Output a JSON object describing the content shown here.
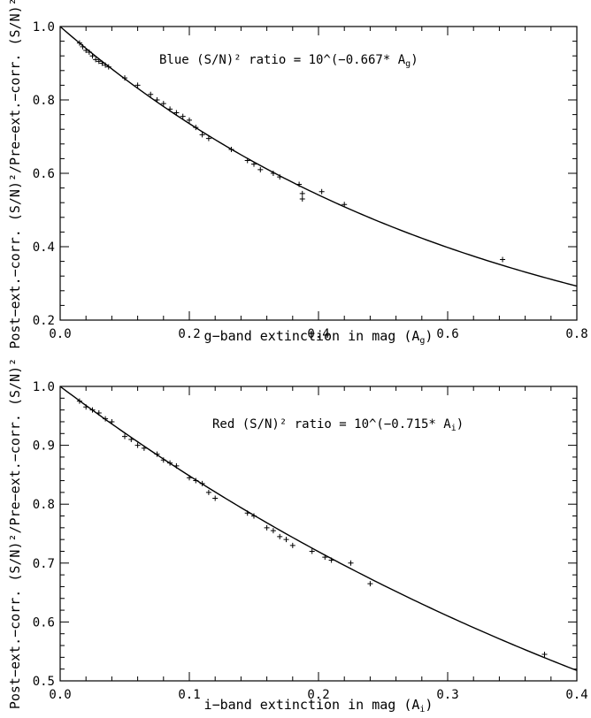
{
  "chart_data": [
    {
      "type": "scatter",
      "xlabel": "g−band extinction in mag (A",
      "xlabel_sub": "g",
      "xlabel_close": ")",
      "ylabel": "Post−ext.−corr. (S/N)²/Pre−ext.−corr. (S/N)²",
      "annotation": "Blue (S/N)² ratio = 10^(−0.667* A",
      "annotation_sub": "g",
      "annotation_close": ")",
      "xlim": [
        0.0,
        0.8
      ],
      "ylim": [
        0.2,
        1.0
      ],
      "xticks": [
        "0.0",
        "0.2",
        "0.4",
        "0.6",
        "0.8"
      ],
      "yticks": [
        "0.2",
        "0.4",
        "0.6",
        "0.8",
        "1.0"
      ],
      "fit_coefficient": -0.667,
      "series": [
        {
          "x": [
            0.03,
            0.035,
            0.04,
            0.045,
            0.05,
            0.055,
            0.06,
            0.065,
            0.07,
            0.075,
            0.1,
            0.12,
            0.14,
            0.15,
            0.16,
            0.17,
            0.18,
            0.19,
            0.2,
            0.21,
            0.22,
            0.23,
            0.265,
            0.29,
            0.3,
            0.31,
            0.33,
            0.34,
            0.37,
            0.375,
            0.375,
            0.405,
            0.44,
            0.685
          ],
          "y": [
            0.955,
            0.945,
            0.935,
            0.93,
            0.92,
            0.91,
            0.905,
            0.9,
            0.895,
            0.89,
            0.86,
            0.84,
            0.815,
            0.8,
            0.79,
            0.775,
            0.765,
            0.755,
            0.745,
            0.725,
            0.705,
            0.695,
            0.665,
            0.635,
            0.625,
            0.61,
            0.6,
            0.59,
            0.57,
            0.545,
            0.53,
            0.55,
            0.515,
            0.365
          ]
        }
      ]
    },
    {
      "type": "scatter",
      "xlabel": "i−band extinction in mag (A",
      "xlabel_sub": "i",
      "xlabel_close": ")",
      "ylabel": "Post−ext.−corr. (S/N)²/Pre−ext.−corr. (S/N)²",
      "annotation": "Red (S/N)² ratio = 10^(−0.715* A",
      "annotation_sub": "i",
      "annotation_close": ")",
      "xlim": [
        0.0,
        0.4
      ],
      "ylim": [
        0.5,
        1.0
      ],
      "xticks": [
        "0.0",
        "0.1",
        "0.2",
        "0.3",
        "0.4"
      ],
      "yticks": [
        "0.5",
        "0.6",
        "0.7",
        "0.8",
        "0.9",
        "1.0"
      ],
      "fit_coefficient": -0.715,
      "series": [
        {
          "x": [
            0.015,
            0.02,
            0.025,
            0.03,
            0.035,
            0.04,
            0.05,
            0.055,
            0.06,
            0.065,
            0.075,
            0.08,
            0.085,
            0.09,
            0.1,
            0.105,
            0.11,
            0.115,
            0.12,
            0.145,
            0.15,
            0.16,
            0.165,
            0.17,
            0.175,
            0.18,
            0.195,
            0.205,
            0.21,
            0.225,
            0.24,
            0.375
          ],
          "y": [
            0.975,
            0.965,
            0.96,
            0.955,
            0.945,
            0.94,
            0.915,
            0.91,
            0.9,
            0.895,
            0.885,
            0.875,
            0.87,
            0.865,
            0.845,
            0.84,
            0.835,
            0.82,
            0.81,
            0.785,
            0.78,
            0.76,
            0.755,
            0.745,
            0.74,
            0.73,
            0.72,
            0.71,
            0.705,
            0.7,
            0.665,
            0.545
          ]
        }
      ]
    }
  ]
}
